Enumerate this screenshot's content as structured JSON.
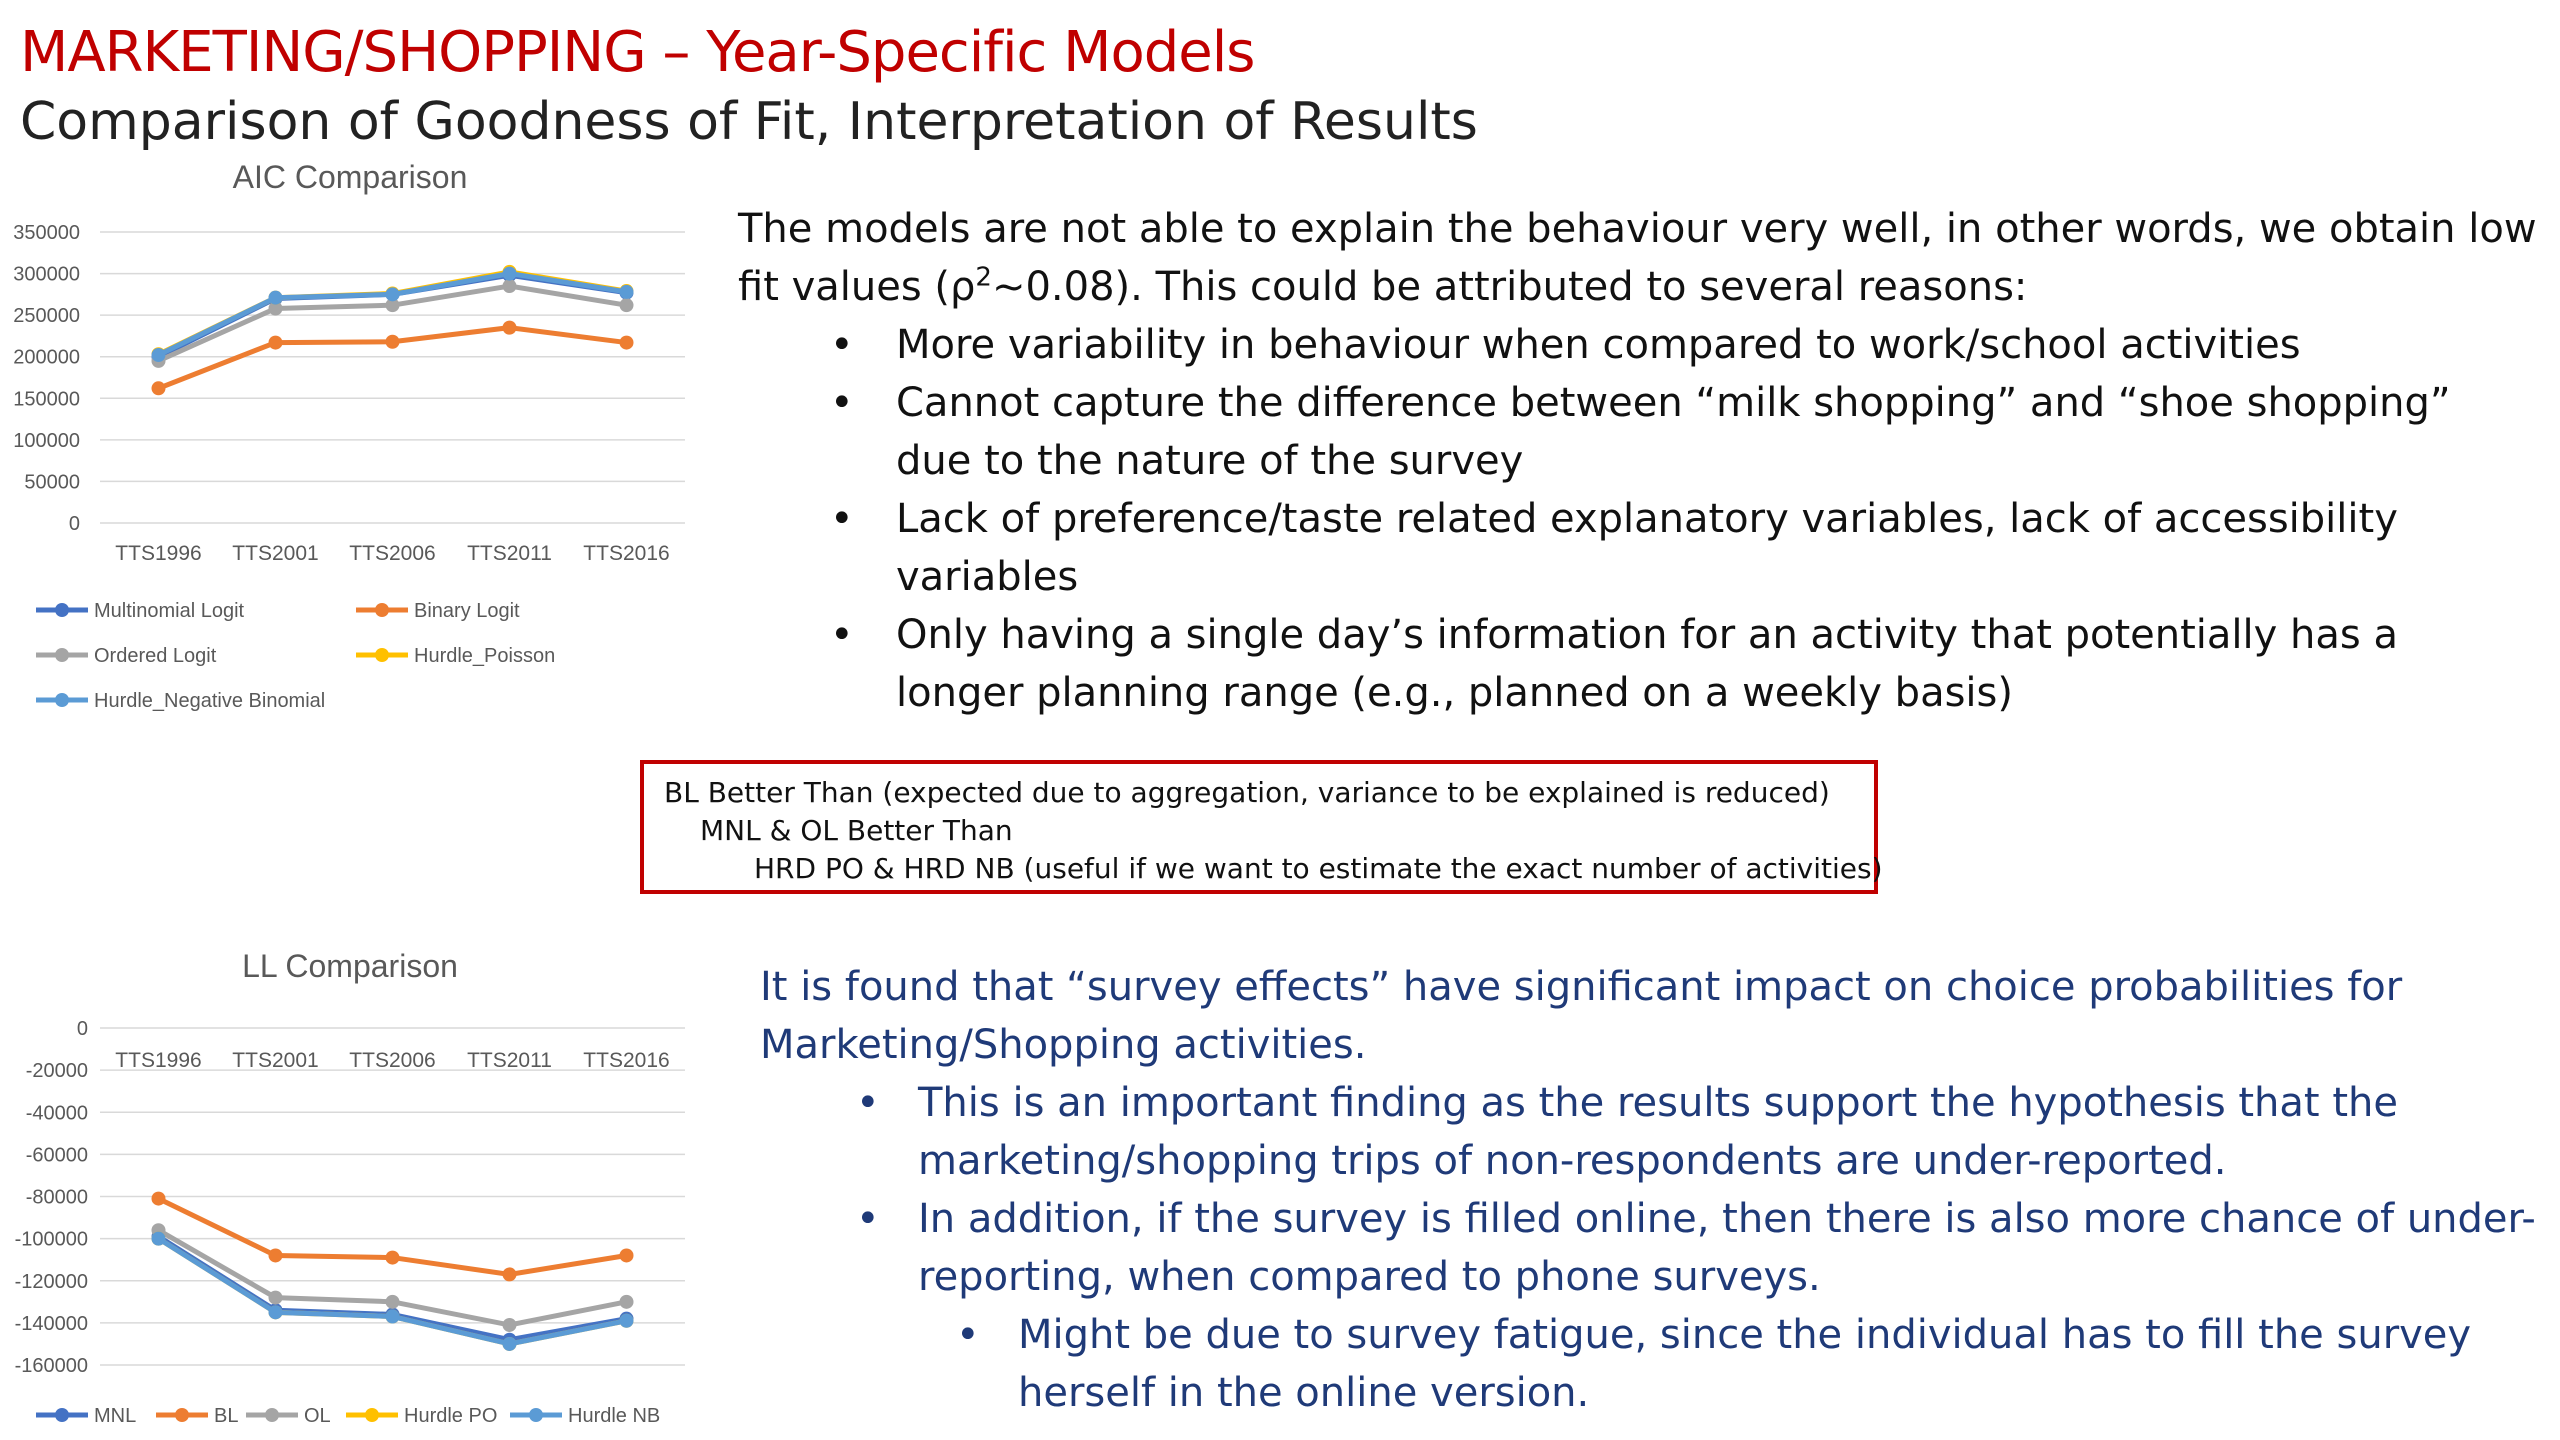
{
  "header": {
    "title": "MARKETING/SHOPPING – Year-Specific Models",
    "subtitle": "Comparison of Goodness of Fit, Interpretation of Results"
  },
  "chart_data": [
    {
      "type": "line",
      "title": "AIC Comparison",
      "categories": [
        "TTS1996",
        "TTS2001",
        "TTS2006",
        "TTS2011",
        "TTS2016"
      ],
      "ylim": [
        0,
        350000
      ],
      "yticks": [
        0,
        50000,
        100000,
        150000,
        200000,
        250000,
        300000,
        350000
      ],
      "grid": true,
      "legend_position": "bottom",
      "series": [
        {
          "name": "Multinomial Logit",
          "color": "#4472c4",
          "values": [
            200000,
            270000,
            275000,
            298000,
            277000
          ]
        },
        {
          "name": "Binary Logit",
          "color": "#ed7d31",
          "values": [
            162000,
            217000,
            218000,
            235000,
            217000
          ]
        },
        {
          "name": "Ordered Logit",
          "color": "#a5a5a5",
          "values": [
            195000,
            258000,
            262000,
            285000,
            262000
          ]
        },
        {
          "name": "Hurdle_Poisson",
          "color": "#ffc000",
          "values": [
            203000,
            271000,
            276000,
            302000,
            279000
          ]
        },
        {
          "name": "Hurdle_Negative Binomial",
          "color": "#5b9bd5",
          "values": [
            202000,
            271000,
            275000,
            300000,
            278000
          ]
        }
      ]
    },
    {
      "type": "line",
      "title": "LL Comparison",
      "categories": [
        "TTS1996",
        "TTS2001",
        "TTS2006",
        "TTS2011",
        "TTS2016"
      ],
      "ylim": [
        -160000,
        0
      ],
      "yticks": [
        0,
        -20000,
        -40000,
        -60000,
        -80000,
        -100000,
        -120000,
        -140000,
        -160000
      ],
      "grid": true,
      "legend_position": "bottom",
      "series": [
        {
          "name": "MNL",
          "color": "#4472c4",
          "values": [
            -99000,
            -134000,
            -136000,
            -148000,
            -138000
          ]
        },
        {
          "name": "BL",
          "color": "#ed7d31",
          "values": [
            -81000,
            -108000,
            -109000,
            -117000,
            -108000
          ]
        },
        {
          "name": "OL",
          "color": "#a5a5a5",
          "values": [
            -96000,
            -128000,
            -130000,
            -141000,
            -130000
          ]
        },
        {
          "name": "Hurdle PO",
          "color": "#ffc000",
          "values": [
            -100000,
            -135000,
            -137000,
            -150000,
            -139000
          ]
        },
        {
          "name": "Hurdle NB",
          "color": "#5b9bd5",
          "values": [
            -100000,
            -135000,
            -137000,
            -150000,
            -139000
          ]
        }
      ]
    }
  ],
  "top_text": {
    "intro_a": "The models are not able to explain the behaviour very well, in other words, we obtain low fit values (ρ",
    "intro_sup": "2",
    "intro_b": "~0.08). This could be attributed to several reasons:",
    "bullets": [
      "More variability in behaviour when compared to work/school activities",
      "Cannot capture the difference between “milk shopping” and “shoe shopping” due to the nature of the survey",
      "Lack of preference/taste related explanatory variables, lack of accessibility variables",
      "Only having a single day’s information for an activity that potentially has a longer planning range (e.g., planned on a weekly basis)"
    ]
  },
  "callout": {
    "line1": "BL Better Than (expected due to aggregation, variance to be explained is reduced)",
    "line2": "MNL & OL Better Than",
    "line3": "HRD PO & HRD NB  (useful if we want to estimate the exact number of activities)"
  },
  "bottom_text": {
    "intro": "It is found that “survey effects” have significant impact on choice probabilities for Marketing/Shopping activities.",
    "bullet1": "This is an important finding as the results support the hypothesis that the marketing/shopping trips of non-respondents are under-reported.",
    "bullet2": "In addition, if the survey is filled online, then there is also more chance of under-reporting, when compared to phone surveys.",
    "sub_bullet": "Might be due to survey fatigue, since the individual has to fill the survey herself in the online version."
  }
}
